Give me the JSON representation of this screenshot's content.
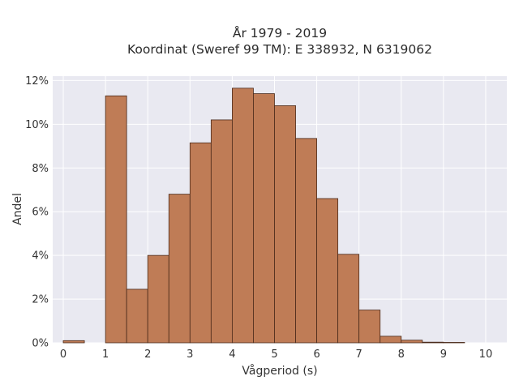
{
  "title_line1": "År 1979 - 2019",
  "title_line2": "Koordinat (Sweref 99 TM): E 338932, N 6319062",
  "chart_data": {
    "type": "bar",
    "subtype": "histogram",
    "xlabel": "Vågperiod (s)",
    "ylabel": "Andel",
    "xlim": [
      -0.25,
      10.5
    ],
    "ylim": [
      0,
      12.2
    ],
    "bin_width": 0.5,
    "bins": [
      {
        "x0": 0.0,
        "x1": 0.5,
        "value": 0.1
      },
      {
        "x0": 0.5,
        "x1": 1.0,
        "value": 0.0
      },
      {
        "x0": 1.0,
        "x1": 1.5,
        "value": 11.3
      },
      {
        "x0": 1.5,
        "x1": 2.0,
        "value": 2.45
      },
      {
        "x0": 2.0,
        "x1": 2.5,
        "value": 4.0
      },
      {
        "x0": 2.5,
        "x1": 3.0,
        "value": 6.8
      },
      {
        "x0": 3.0,
        "x1": 3.5,
        "value": 9.15
      },
      {
        "x0": 3.5,
        "x1": 4.0,
        "value": 10.2
      },
      {
        "x0": 4.0,
        "x1": 4.5,
        "value": 11.65
      },
      {
        "x0": 4.5,
        "x1": 5.0,
        "value": 11.4
      },
      {
        "x0": 5.0,
        "x1": 5.5,
        "value": 10.85
      },
      {
        "x0": 5.5,
        "x1": 6.0,
        "value": 9.35
      },
      {
        "x0": 6.0,
        "x1": 6.5,
        "value": 6.6
      },
      {
        "x0": 6.5,
        "x1": 7.0,
        "value": 4.05
      },
      {
        "x0": 7.0,
        "x1": 7.5,
        "value": 1.5
      },
      {
        "x0": 7.5,
        "x1": 8.0,
        "value": 0.3
      },
      {
        "x0": 8.0,
        "x1": 8.5,
        "value": 0.12
      },
      {
        "x0": 8.5,
        "x1": 9.0,
        "value": 0.03
      },
      {
        "x0": 9.0,
        "x1": 9.5,
        "value": 0.02
      },
      {
        "x0": 9.5,
        "x1": 10.0,
        "value": 0.0
      }
    ],
    "xticks": [
      {
        "value": 0,
        "label": "0"
      },
      {
        "value": 1,
        "label": "1"
      },
      {
        "value": 2,
        "label": "2"
      },
      {
        "value": 3,
        "label": "3"
      },
      {
        "value": 4,
        "label": "4"
      },
      {
        "value": 5,
        "label": "5"
      },
      {
        "value": 6,
        "label": "6"
      },
      {
        "value": 7,
        "label": "7"
      },
      {
        "value": 8,
        "label": "8"
      },
      {
        "value": 9,
        "label": "9"
      },
      {
        "value": 10,
        "label": "10"
      }
    ],
    "yticks": [
      {
        "value": 0,
        "label": "0%"
      },
      {
        "value": 2,
        "label": "2%"
      },
      {
        "value": 4,
        "label": "4%"
      },
      {
        "value": 6,
        "label": "6%"
      },
      {
        "value": 8,
        "label": "8%"
      },
      {
        "value": 10,
        "label": "10%"
      },
      {
        "value": 12,
        "label": "12%"
      }
    ],
    "grid": true,
    "colors": {
      "bar_fill": "#bf7c56",
      "bar_stroke": "#4a2a1a",
      "plot_background": "#e9e9f1",
      "grid": "#ffffff"
    }
  }
}
